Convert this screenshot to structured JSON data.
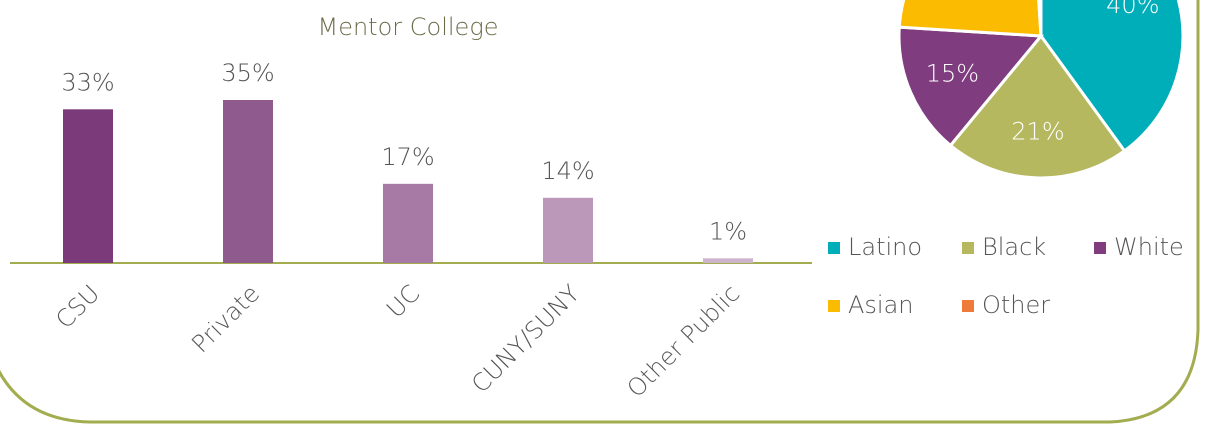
{
  "chart_data": [
    {
      "type": "bar",
      "title": "Mentor College",
      "categories": [
        "CSU",
        "Private",
        "UC",
        "CUNY/SUNY",
        "Other Public"
      ],
      "values": [
        33,
        35,
        17,
        14,
        1
      ],
      "value_labels": [
        "33%",
        "35%",
        "17%",
        "14%",
        "1%"
      ],
      "colors": [
        "#7b3a7a",
        "#8f5a8e",
        "#a67aa4",
        "#bb98ba",
        "#cdb3cc"
      ]
    },
    {
      "type": "pie",
      "categories": [
        "Latino",
        "Black",
        "White",
        "Asian",
        "Other"
      ],
      "values": [
        40,
        21,
        15,
        23,
        1
      ],
      "value_labels": [
        "40%",
        "21%",
        "15%",
        null,
        null
      ],
      "colors": [
        "#00aeba",
        "#b5b85f",
        "#7f3d7f",
        "#fbbb00",
        "#ee7b3a"
      ]
    }
  ]
}
